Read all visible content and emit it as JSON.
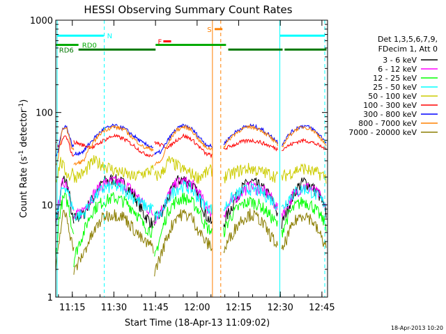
{
  "chart_data": {
    "type": "line",
    "title": "HESSI Observing Summary Count Rates",
    "xlabel": "Start Time (18-Apr-13 11:09:02)",
    "ylabel_main": "Count Rate (s",
    "ylabel_sup1": "-1",
    "ylabel_mid": " detector",
    "ylabel_sup2": "-1",
    "ylabel_end": ")",
    "yscale": "log",
    "ylim": [
      1,
      1000
    ],
    "xlim_minutes": [
      0,
      98
    ],
    "x_ticks": [
      {
        "label": "11:15",
        "minute": 5.97
      },
      {
        "label": "11:30",
        "minute": 20.97
      },
      {
        "label": "11:45",
        "minute": 35.97
      },
      {
        "label": "12:00",
        "minute": 50.97
      },
      {
        "label": "12:15",
        "minute": 65.97
      },
      {
        "label": "12:30",
        "minute": 80.97
      },
      {
        "label": "12:45",
        "minute": 95.97
      }
    ],
    "y_ticks": [
      {
        "label": "1",
        "value": 1
      },
      {
        "label": "10",
        "value": 10
      },
      {
        "label": "100",
        "value": 100
      },
      {
        "label": "1000",
        "value": 1000
      }
    ],
    "legend_header": [
      "Det 1,3,5,6,7,9,",
      "FDecim 1, Att 0"
    ],
    "series": [
      {
        "name": "3 - 6 keV",
        "color": "#000000",
        "day": [
          7,
          8,
          12,
          18,
          19,
          17,
          13,
          8,
          6
        ],
        "night": [
          6,
          10,
          15,
          18,
          16,
          13,
          8
        ]
      },
      {
        "name": "6 - 12 keV",
        "color": "#ff00ff",
        "day": [
          7,
          9,
          13,
          17,
          18,
          17,
          14,
          10,
          8
        ],
        "night": [
          8,
          11,
          14,
          16,
          15,
          13,
          9
        ]
      },
      {
        "name": "12 - 25 keV",
        "color": "#00ff00",
        "day": [
          2.5,
          5,
          9,
          11,
          12,
          11,
          9,
          6,
          5
        ],
        "night": [
          5,
          8,
          10,
          11,
          10,
          8,
          6
        ]
      },
      {
        "name": "25 - 50 keV",
        "color": "#00ffff",
        "day": [
          7.5,
          8,
          12,
          15,
          16,
          15,
          12,
          10,
          9
        ],
        "night": [
          9,
          12,
          14,
          15,
          14,
          12,
          10
        ]
      },
      {
        "name": "50 - 100 keV",
        "color": "#cccc00",
        "day": [
          20,
          22,
          30,
          27,
          24,
          22,
          20,
          22,
          24
        ],
        "night": [
          20,
          22,
          24,
          25,
          23,
          22,
          20
        ]
      },
      {
        "name": "100 - 300 keV",
        "color": "#ff0000",
        "day": [
          48,
          44,
          42,
          50,
          56,
          52,
          44,
          36,
          34
        ],
        "night": [
          40,
          44,
          48,
          50,
          48,
          44,
          40
        ]
      },
      {
        "name": "300 - 800 keV",
        "color": "#0000ff",
        "day": [
          35,
          38,
          52,
          66,
          72,
          68,
          56,
          46,
          42
        ],
        "night": [
          45,
          58,
          68,
          72,
          68,
          58,
          48
        ]
      },
      {
        "name": "800 - 7000 keV",
        "color": "#ff8000",
        "day": [
          27,
          30,
          48,
          64,
          70,
          66,
          52,
          42,
          40
        ],
        "night": [
          42,
          56,
          66,
          70,
          66,
          56,
          44
        ]
      },
      {
        "name": "7000 - 20000 keV",
        "color": "#8b7d00",
        "day": [
          1.8,
          3,
          5,
          7.5,
          8,
          7.5,
          5.5,
          4,
          3.5
        ],
        "night": [
          3,
          5,
          7,
          8,
          7,
          5,
          3.5
        ]
      }
    ],
    "segments": [
      {
        "start": 0,
        "end": 6.5,
        "type": "day"
      },
      {
        "start": 6.5,
        "end": 35.2,
        "type": "day"
      },
      {
        "start": 35.6,
        "end": 56.5,
        "type": "day"
      },
      {
        "start": 60.5,
        "end": 80,
        "type": "night"
      },
      {
        "start": 81.5,
        "end": 97.5,
        "type": "night"
      }
    ],
    "vlines": [
      {
        "minute": 0.5,
        "color": "#00ffff",
        "dashed": false
      },
      {
        "minute": 17.5,
        "color": "#00ffff",
        "dashed": true
      },
      {
        "minute": 80.8,
        "color": "#00ffff",
        "dashed": false
      },
      {
        "minute": 97,
        "color": "#00ffff",
        "dashed": true
      },
      {
        "minute": 56.5,
        "color": "#ff8000",
        "dashed": false
      },
      {
        "minute": 59.5,
        "color": "#ff8000",
        "dashed": true
      }
    ],
    "bars": [
      {
        "label": "N",
        "color": "#00ffff",
        "value": 680,
        "segments": [
          [
            0.5,
            17.3
          ],
          [
            80.8,
            97
          ]
        ],
        "label_minute": 18.5
      },
      {
        "label": "RD0",
        "color": "#00aa00",
        "value": 540,
        "segments": [
          [
            0,
            8.2
          ],
          [
            36,
            61.4
          ]
        ],
        "label_minute": 9.5
      },
      {
        "label": "RD6",
        "color": "#007700",
        "value": 480,
        "segments": [
          [
            8.2,
            36
          ],
          [
            62.2,
            81.8
          ],
          [
            82.5,
            97.6
          ]
        ],
        "label_minute": 1.2
      },
      {
        "label": "F",
        "color": "#ff0000",
        "value": 590,
        "segments": [
          [
            38.8,
            41.6
          ]
        ],
        "label_minute": 36.8
      },
      {
        "label": "S",
        "color": "#ff8000",
        "value": 800,
        "segments": [
          [
            57.3,
            60.1
          ]
        ],
        "label_minute": 54.6
      }
    ],
    "timestamp": "18-Apr-2013 10:20"
  }
}
